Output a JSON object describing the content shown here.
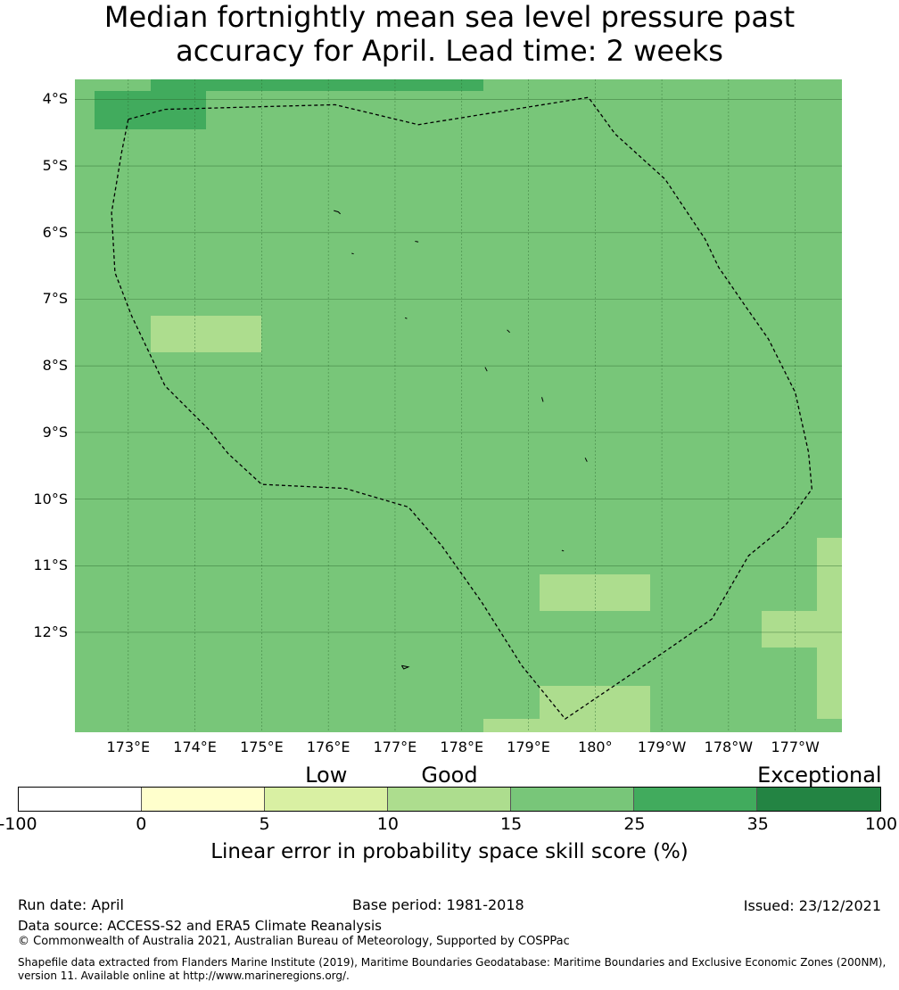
{
  "title_line1": "Median fortnightly mean sea level pressure past",
  "title_line2": "accuracy for April. Lead time: 2 weeks",
  "map": {
    "lon_range": [
      172.2,
      183.7
    ],
    "lat_range": [
      -13.5,
      -3.7
    ],
    "base_color": "#78c679",
    "lat_ticks": [
      {
        "lat": -4,
        "label": "4°S"
      },
      {
        "lat": -5,
        "label": "5°S"
      },
      {
        "lat": -6,
        "label": "6°S"
      },
      {
        "lat": -7,
        "label": "7°S"
      },
      {
        "lat": -8,
        "label": "8°S"
      },
      {
        "lat": -9,
        "label": "9°S"
      },
      {
        "lat": -10,
        "label": "10°S"
      },
      {
        "lat": -11,
        "label": "11°S"
      },
      {
        "lat": -12,
        "label": "12°S"
      }
    ],
    "lon_ticks": [
      {
        "lon": 173,
        "label": "173°E"
      },
      {
        "lon": 174,
        "label": "174°E"
      },
      {
        "lon": 175,
        "label": "175°E"
      },
      {
        "lon": 176,
        "label": "176°E"
      },
      {
        "lon": 177,
        "label": "177°E"
      },
      {
        "lon": 178,
        "label": "178°E"
      },
      {
        "lon": 179,
        "label": "179°E"
      },
      {
        "lon": 180,
        "label": "180°"
      },
      {
        "lon": 181,
        "label": "179°W"
      },
      {
        "lon": 182,
        "label": "178°W"
      },
      {
        "lon": 183,
        "label": "177°W"
      }
    ],
    "cells": [
      {
        "lon0": 173.33,
        "lon1": 178.33,
        "lat0": -3.7,
        "lat1": -3.88,
        "color": "#41ab5d"
      },
      {
        "lon0": 172.5,
        "lon1": 174.17,
        "lat0": -3.88,
        "lat1": -4.45,
        "color": "#41ab5d"
      },
      {
        "lon0": 173.33,
        "lon1": 175.0,
        "lat0": -7.25,
        "lat1": -7.8,
        "color": "#addd8e"
      },
      {
        "lon0": 179.17,
        "lon1": 180.83,
        "lat0": -11.13,
        "lat1": -11.68,
        "color": "#addd8e"
      },
      {
        "lon0": 183.33,
        "lon1": 183.7,
        "lat0": -10.58,
        "lat1": -13.3,
        "color": "#addd8e"
      },
      {
        "lon0": 182.5,
        "lon1": 183.33,
        "lat0": -11.68,
        "lat1": -12.23,
        "color": "#addd8e"
      },
      {
        "lon0": 179.17,
        "lon1": 180.83,
        "lat0": -12.8,
        "lat1": -13.5,
        "color": "#addd8e"
      },
      {
        "lon0": 178.33,
        "lon1": 179.17,
        "lat0": -13.3,
        "lat1": -13.5,
        "color": "#addd8e"
      }
    ],
    "eez_boundary": [
      [
        173.0,
        -4.3
      ],
      [
        173.55,
        -4.15
      ],
      [
        176.1,
        -4.08
      ],
      [
        177.35,
        -4.38
      ],
      [
        179.9,
        -3.97
      ],
      [
        180.3,
        -4.52
      ],
      [
        181.05,
        -5.2
      ],
      [
        181.65,
        -6.1
      ],
      [
        181.85,
        -6.52
      ],
      [
        182.25,
        -7.1
      ],
      [
        182.6,
        -7.6
      ],
      [
        183.0,
        -8.4
      ],
      [
        183.2,
        -9.3
      ],
      [
        183.25,
        -9.85
      ],
      [
        182.85,
        -10.4
      ],
      [
        182.3,
        -10.85
      ],
      [
        181.75,
        -11.8
      ],
      [
        181.1,
        -12.25
      ],
      [
        179.55,
        -13.3
      ],
      [
        178.9,
        -12.5
      ],
      [
        178.3,
        -11.55
      ],
      [
        177.7,
        -10.7
      ],
      [
        177.2,
        -10.12
      ],
      [
        176.25,
        -9.84
      ],
      [
        175.0,
        -9.78
      ],
      [
        174.5,
        -9.32
      ],
      [
        174.2,
        -8.95
      ],
      [
        173.55,
        -8.3
      ],
      [
        173.05,
        -7.25
      ],
      [
        172.8,
        -6.6
      ],
      [
        172.75,
        -5.7
      ],
      [
        172.9,
        -4.8
      ],
      [
        173.0,
        -4.3
      ]
    ],
    "islands": [
      [
        [
          176.08,
          -5.67
        ],
        [
          176.15,
          -5.69
        ],
        [
          176.18,
          -5.72
        ]
      ],
      [
        [
          177.3,
          -6.13
        ],
        [
          177.35,
          -6.14
        ]
      ],
      [
        [
          176.35,
          -6.31
        ],
        [
          176.38,
          -6.32
        ]
      ],
      [
        [
          177.15,
          -7.28
        ],
        [
          177.18,
          -7.29
        ]
      ],
      [
        [
          178.68,
          -7.46
        ],
        [
          178.72,
          -7.5
        ]
      ],
      [
        [
          178.35,
          -8.02
        ],
        [
          178.38,
          -8.08
        ]
      ],
      [
        [
          179.2,
          -8.47
        ],
        [
          179.22,
          -8.54
        ]
      ],
      [
        [
          179.85,
          -9.38
        ],
        [
          179.88,
          -9.44
        ]
      ],
      [
        [
          179.5,
          -10.77
        ],
        [
          179.53,
          -10.78
        ]
      ],
      [
        [
          177.1,
          -12.5
        ],
        [
          177.2,
          -12.52
        ],
        [
          177.13,
          -12.55
        ],
        [
          177.1,
          -12.5
        ]
      ]
    ]
  },
  "category_labels": [
    {
      "label": "Low",
      "position": 2.5
    },
    {
      "label": "Good",
      "position": 3.5
    },
    {
      "label": "Exceptional",
      "position": 6.5
    }
  ],
  "colorbar": {
    "segments": [
      {
        "from": "-100",
        "to": "0",
        "color": "#ffffff"
      },
      {
        "from": "0",
        "to": "5",
        "color": "#ffffcc"
      },
      {
        "from": "5",
        "to": "10",
        "color": "#d9f0a3"
      },
      {
        "from": "10",
        "to": "15",
        "color": "#addd8e"
      },
      {
        "from": "15",
        "to": "25",
        "color": "#78c679"
      },
      {
        "from": "25",
        "to": "35",
        "color": "#41ab5d"
      },
      {
        "from": "35",
        "to": "100",
        "color": "#238443"
      }
    ],
    "ticks": [
      "-100",
      "0",
      "5",
      "10",
      "15",
      "25",
      "35",
      "100"
    ],
    "label": "Linear error in probability space skill score (%)"
  },
  "footer": {
    "run_date": "Run date: April",
    "base_period": "Base period: 1981-2018",
    "issued": "Issued: 23/12/2021",
    "data_source": "Data source: ACCESS-S2 and ERA5 Climate Reanalysis",
    "copyright": "© Commonwealth of Australia 2021, Australian Bureau of Meteorology, Supported by COSPPac",
    "shapefile": "Shapefile data extracted from Flanders Marine Institute (2019), Maritime Boundaries Geodatabase: Maritime Boundaries and Exclusive Economic Zones (200NM), version 11. Available online at http://www.marineregions.org/."
  }
}
